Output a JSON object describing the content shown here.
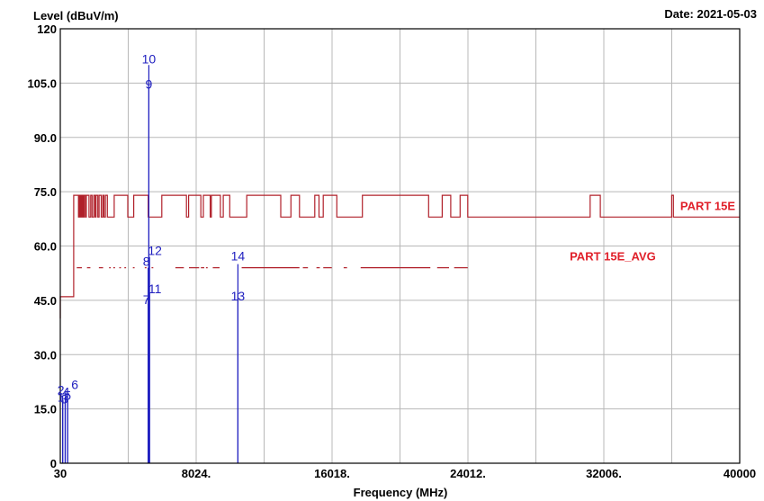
{
  "chart_data": {
    "type": "line",
    "title": "",
    "ylabel": "Level (dBuV/m)",
    "xlabel": "Frequency (MHz)",
    "date_label": "Date: 2021-05-03",
    "xlim": [
      30,
      40000
    ],
    "ylim": [
      0,
      120
    ],
    "grid": true,
    "x_ticks": [
      30,
      4027,
      8024,
      12021,
      16018,
      20015,
      24012,
      28009,
      32006,
      36003,
      40000
    ],
    "x_tick_labels": [
      "30",
      "",
      "8024.",
      "",
      "16018.",
      "",
      "24012.",
      "",
      "32006.",
      "",
      "40000"
    ],
    "y_ticks": [
      0,
      15,
      30,
      45,
      60,
      75,
      90,
      105,
      120
    ],
    "y_tick_labels": [
      "0",
      "15.0",
      "30.0",
      "45.0",
      "60.0",
      "75.0",
      "90.0",
      "105.0",
      "120"
    ],
    "colors": {
      "limit": "#b0202a",
      "limit_label": "#e0202a",
      "measurement": "#2020c0",
      "grid": "#b8b8b8",
      "axis": "#000000"
    },
    "series": [
      {
        "name": "PART 15E",
        "color": "#b0202a",
        "points": [
          [
            30,
            40
          ],
          [
            30,
            46
          ],
          [
            110,
            46
          ],
          [
            110,
            46
          ],
          [
            820,
            46
          ],
          [
            820,
            74
          ],
          [
            1100,
            74
          ],
          [
            1100,
            68
          ],
          [
            1140,
            68
          ],
          [
            1140,
            74
          ],
          [
            1180,
            74
          ],
          [
            1180,
            68
          ],
          [
            1220,
            68
          ],
          [
            1220,
            74
          ],
          [
            1260,
            74
          ],
          [
            1260,
            68
          ],
          [
            1320,
            68
          ],
          [
            1320,
            74
          ],
          [
            1380,
            74
          ],
          [
            1380,
            68
          ],
          [
            1430,
            68
          ],
          [
            1430,
            74
          ],
          [
            1500,
            74
          ],
          [
            1500,
            68
          ],
          [
            1560,
            68
          ],
          [
            1560,
            74
          ],
          [
            1720,
            74
          ],
          [
            1720,
            68
          ],
          [
            1820,
            68
          ],
          [
            1820,
            74
          ],
          [
            1900,
            74
          ],
          [
            1900,
            68
          ],
          [
            2000,
            68
          ],
          [
            2000,
            74
          ],
          [
            2080,
            74
          ],
          [
            2080,
            68
          ],
          [
            2130,
            68
          ],
          [
            2130,
            74
          ],
          [
            2240,
            74
          ],
          [
            2240,
            68
          ],
          [
            2310,
            68
          ],
          [
            2310,
            74
          ],
          [
            2440,
            74
          ],
          [
            2440,
            68
          ],
          [
            2530,
            68
          ],
          [
            2530,
            74
          ],
          [
            2600,
            74
          ],
          [
            2600,
            68
          ],
          [
            2680,
            68
          ],
          [
            2680,
            74
          ],
          [
            2800,
            74
          ],
          [
            2800,
            68
          ],
          [
            3200,
            68
          ],
          [
            3200,
            74
          ],
          [
            4000,
            74
          ],
          [
            4000,
            68
          ],
          [
            4350,
            68
          ],
          [
            4350,
            74
          ],
          [
            5200,
            74
          ],
          [
            5200,
            68
          ],
          [
            6000,
            68
          ],
          [
            6000,
            74
          ],
          [
            7450,
            74
          ],
          [
            7450,
            68
          ],
          [
            7580,
            68
          ],
          [
            7580,
            74
          ],
          [
            8300,
            74
          ],
          [
            8300,
            68
          ],
          [
            8450,
            68
          ],
          [
            8450,
            74
          ],
          [
            8850,
            74
          ],
          [
            8850,
            68
          ],
          [
            8920,
            68
          ],
          [
            8920,
            74
          ],
          [
            9450,
            74
          ],
          [
            9450,
            68
          ],
          [
            9620,
            68
          ],
          [
            9620,
            74
          ],
          [
            10000,
            74
          ],
          [
            10000,
            68
          ],
          [
            11000,
            68
          ],
          [
            11000,
            74
          ],
          [
            13000,
            74
          ],
          [
            13000,
            68
          ],
          [
            13600,
            68
          ],
          [
            13600,
            74
          ],
          [
            14100,
            74
          ],
          [
            14100,
            68
          ],
          [
            15000,
            68
          ],
          [
            15000,
            74
          ],
          [
            15250,
            74
          ],
          [
            15250,
            68
          ],
          [
            15500,
            68
          ],
          [
            15500,
            74
          ],
          [
            16300,
            74
          ],
          [
            16300,
            68
          ],
          [
            17800,
            68
          ],
          [
            17800,
            74
          ],
          [
            21700,
            74
          ],
          [
            21700,
            68
          ],
          [
            22500,
            68
          ],
          [
            22500,
            74
          ],
          [
            23000,
            74
          ],
          [
            23000,
            68
          ],
          [
            23550,
            68
          ],
          [
            23550,
            74
          ],
          [
            24000,
            74
          ],
          [
            24000,
            68
          ],
          [
            31200,
            68
          ],
          [
            31200,
            74
          ],
          [
            31800,
            74
          ],
          [
            31800,
            68
          ],
          [
            36000,
            68
          ],
          [
            36000,
            74
          ],
          [
            36100,
            74
          ],
          [
            36100,
            68
          ],
          [
            40000,
            68
          ]
        ]
      },
      {
        "name": "PART 15E_AVG",
        "color": "#b0202a",
        "segments": [
          [
            1000,
            1300
          ],
          [
            1600,
            1800
          ],
          [
            2300,
            2550
          ],
          [
            2900,
            3000
          ],
          [
            3150,
            3250
          ],
          [
            3500,
            3600
          ],
          [
            3800,
            3900
          ],
          [
            4300,
            4400
          ],
          [
            5000,
            5100
          ],
          [
            5400,
            5500
          ],
          [
            6800,
            7300
          ],
          [
            7600,
            8200
          ],
          [
            8300,
            8500
          ],
          [
            8600,
            8700
          ],
          [
            9000,
            9400
          ],
          [
            10700,
            14100
          ],
          [
            14300,
            14600
          ],
          [
            15100,
            15300
          ],
          [
            15500,
            16000
          ],
          [
            16700,
            16900
          ],
          [
            17700,
            21800
          ],
          [
            22200,
            22900
          ],
          [
            23200,
            24000
          ]
        ],
        "value": 54
      }
    ],
    "measurements": [
      {
        "label": "1",
        "x": 170,
        "y": 17
      },
      {
        "label": "2",
        "x": 170,
        "y": 18.5
      },
      {
        "label": "3",
        "x": 320,
        "y": 17
      },
      {
        "label": "4",
        "x": 320,
        "y": 18.5
      },
      {
        "label": "5",
        "x": 460,
        "y": 17.5
      },
      {
        "label": "6",
        "x": 460,
        "y": 20
      },
      {
        "label": "7",
        "x": 5200,
        "y": 44
      },
      {
        "label": "8",
        "x": 5200,
        "y": 54
      },
      {
        "label": "9",
        "x": 5240,
        "y": 104
      },
      {
        "label": "10",
        "x": 5240,
        "y": 110
      },
      {
        "label": "11",
        "x": 5280,
        "y": 47
      },
      {
        "label": "12",
        "x": 5280,
        "y": 57
      },
      {
        "label": "13",
        "x": 10480,
        "y": 47
      },
      {
        "label": "14",
        "x": 10480,
        "y": 55
      }
    ],
    "annotations": [
      {
        "text": "PART 15E",
        "x": 36500,
        "y": 70
      },
      {
        "text": "PART 15E_AVG",
        "x": 30000,
        "y": 56
      }
    ]
  }
}
